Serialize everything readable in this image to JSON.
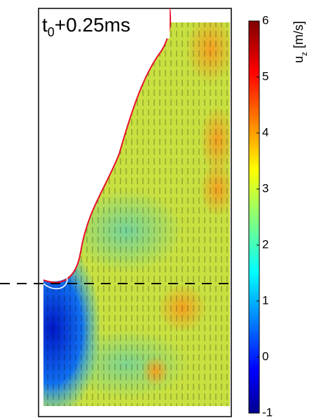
{
  "chart_data": {
    "type": "heatmap",
    "annotation": {
      "base": "t",
      "sub": "0",
      "text": "+0.25ms"
    },
    "colorbar": {
      "label": {
        "base": "u",
        "sub": "z",
        "unit": "[m/s]"
      },
      "lim": [
        -1,
        6
      ],
      "ticks": [
        -1,
        0,
        1,
        2,
        3,
        4,
        5,
        6
      ],
      "colormap": "jet"
    }
  }
}
